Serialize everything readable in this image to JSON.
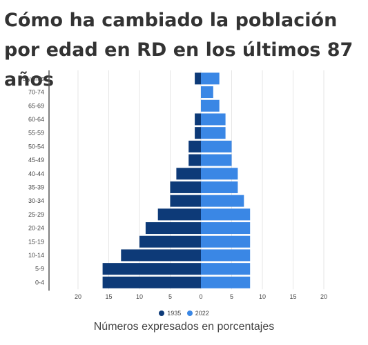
{
  "title": "Cómo ha cambiado la población por edad en RD en los últimos 87 años",
  "note": "Números expresados en porcentajes",
  "colors": {
    "s1935": "#0d3a78",
    "s2022": "#3a87e5",
    "grid": "#e6e6e6",
    "axis": "#555555"
  },
  "legend": [
    {
      "label": "1935",
      "color": "#0d3a78"
    },
    {
      "label": "2022",
      "color": "#3a87e5"
    }
  ],
  "chart_data": {
    "type": "bar",
    "orientation": "horizontal-population-pyramid",
    "categories": [
      "75 y más",
      "70-74",
      "65-69",
      "60-64",
      "55-59",
      "50-54",
      "45-49",
      "40-44",
      "35-39",
      "30-34",
      "25-29",
      "20-24",
      "15-19",
      "10-14",
      "5-9",
      "0-4"
    ],
    "series": [
      {
        "name": "1935",
        "side": "left",
        "values": [
          1,
          0,
          0,
          1,
          1,
          2,
          2,
          4,
          5,
          5,
          7,
          9,
          10,
          13,
          16,
          16
        ]
      },
      {
        "name": "2022",
        "side": "right",
        "values": [
          3,
          2,
          3,
          4,
          4,
          5,
          5,
          6,
          6,
          7,
          8,
          8,
          8,
          8,
          8,
          8
        ]
      }
    ],
    "x_ticks": [
      "20",
      "15",
      "10",
      "5",
      "0",
      "5",
      "10",
      "15",
      "20"
    ],
    "xlim": [
      -20,
      20
    ],
    "grid": true,
    "legend_position": "bottom"
  }
}
